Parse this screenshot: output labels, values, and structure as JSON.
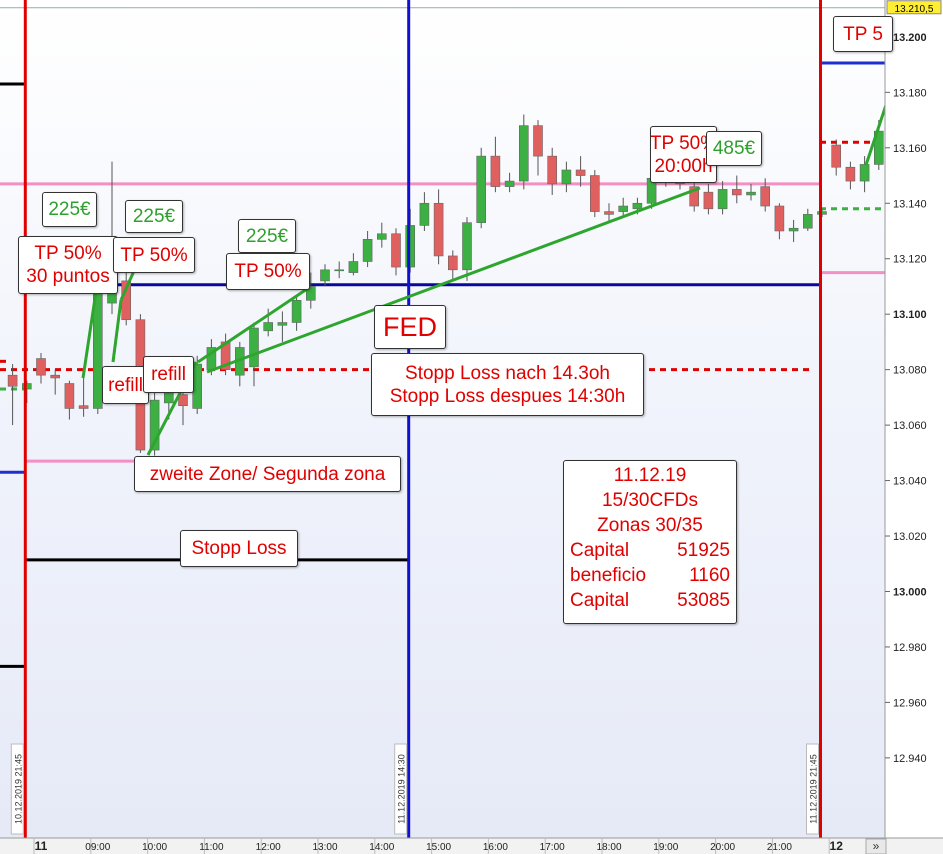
{
  "chart_data": {
    "type": "candlestick",
    "categories": [
      null,
      null,
      "11",
      null,
      null,
      null,
      "09:00",
      null,
      null,
      null,
      "10:00",
      null,
      null,
      null,
      "11:00",
      null,
      null,
      null,
      "12:00",
      null,
      null,
      null,
      "13:00",
      null,
      null,
      null,
      "14:00",
      null,
      null,
      null,
      "15:00",
      null,
      null,
      null,
      "16:00",
      null,
      null,
      null,
      "17:00",
      null,
      null,
      null,
      "18:00",
      null,
      null,
      null,
      "19:00",
      null,
      null,
      null,
      "20:00",
      null,
      null,
      null,
      "21:00",
      null,
      null,
      null,
      "12",
      null,
      null,
      null
    ],
    "open": [
      13.078,
      13.073,
      13.084,
      13.078,
      13.075,
      13.067,
      13.066,
      13.104,
      13.112,
      13.098,
      13.051,
      13.068,
      13.071,
      13.066,
      13.08,
      13.09,
      13.078,
      13.081,
      13.094,
      13.096,
      13.097,
      13.105,
      13.112,
      13.116,
      13.115,
      13.119,
      13.127,
      13.129,
      13.117,
      13.132,
      13.14,
      13.121,
      13.116,
      13.133,
      13.157,
      13.146,
      13.148,
      13.168,
      13.157,
      13.147,
      13.152,
      13.15,
      13.137,
      13.137,
      13.138,
      13.14,
      13.149,
      13.147,
      13.146,
      13.144,
      13.138,
      13.145,
      13.143,
      13.146,
      13.139,
      13.13,
      13.131,
      13.136,
      13.161,
      13.153,
      13.148,
      13.154
    ],
    "high": [
      13.082,
      13.076,
      13.086,
      13.08,
      13.076,
      13.08,
      13.116,
      13.155,
      13.115,
      13.1,
      13.072,
      13.075,
      13.073,
      13.085,
      13.091,
      13.093,
      13.09,
      13.097,
      13.102,
      13.101,
      13.107,
      13.115,
      13.118,
      13.119,
      13.122,
      13.13,
      13.133,
      13.131,
      13.138,
      13.144,
      13.145,
      13.123,
      13.135,
      13.16,
      13.164,
      13.151,
      13.172,
      13.17,
      13.16,
      13.155,
      13.157,
      13.152,
      13.14,
      13.142,
      13.142,
      13.152,
      13.153,
      13.153,
      13.15,
      13.147,
      13.148,
      13.15,
      13.147,
      13.149,
      13.14,
      13.134,
      13.138,
      13.138,
      13.163,
      13.155,
      13.157,
      13.17
    ],
    "low": [
      13.06,
      13.068,
      13.075,
      13.071,
      13.062,
      13.063,
      13.064,
      13.1,
      13.096,
      13.05,
      13.049,
      13.062,
      13.06,
      13.064,
      13.078,
      13.078,
      13.074,
      13.074,
      13.092,
      13.09,
      13.094,
      13.102,
      13.11,
      13.113,
      13.114,
      13.117,
      13.124,
      13.114,
      13.115,
      13.13,
      13.118,
      13.112,
      13.112,
      13.131,
      13.144,
      13.144,
      13.145,
      13.15,
      13.143,
      13.144,
      13.146,
      13.135,
      13.133,
      13.135,
      13.136,
      13.138,
      13.146,
      13.145,
      13.137,
      13.136,
      13.136,
      13.14,
      13.141,
      13.137,
      13.127,
      13.126,
      13.13,
      13.135,
      13.15,
      13.145,
      13.144,
      13.152
    ],
    "close": [
      13.074,
      13.075,
      13.078,
      13.077,
      13.066,
      13.066,
      13.113,
      13.113,
      13.098,
      13.051,
      13.069,
      13.072,
      13.067,
      13.082,
      13.088,
      13.08,
      13.088,
      13.095,
      13.097,
      13.097,
      13.105,
      13.11,
      13.116,
      13.116,
      13.119,
      13.127,
      13.129,
      13.117,
      13.132,
      13.14,
      13.121,
      13.116,
      13.133,
      13.157,
      13.146,
      13.148,
      13.168,
      13.157,
      13.147,
      13.152,
      13.15,
      13.137,
      13.136,
      13.139,
      13.14,
      13.149,
      13.15,
      13.15,
      13.139,
      13.138,
      13.145,
      13.143,
      13.144,
      13.139,
      13.13,
      13.131,
      13.136,
      13.137,
      13.153,
      13.148,
      13.154,
      13.166
    ],
    "up_color": "#3cb043",
    "down_color": "#e06060",
    "ylim": [
      12.9111,
      13.2133
    ],
    "yticks": [
      {
        "value": 13.2,
        "label": "13.200"
      },
      {
        "value": 13.18,
        "label": "13.180"
      },
      {
        "value": 13.16,
        "label": "13.160"
      },
      {
        "value": 13.14,
        "label": "13.140"
      },
      {
        "value": 13.12,
        "label": "13.120"
      },
      {
        "value": 13.1,
        "label": "13.100"
      },
      {
        "value": 13.08,
        "label": "13.080"
      },
      {
        "value": 13.06,
        "label": "13.060"
      },
      {
        "value": 13.04,
        "label": "13.040"
      },
      {
        "value": 13.02,
        "label": "13.020"
      },
      {
        "value": 13.0,
        "label": "13.000"
      },
      {
        "value": 12.98,
        "label": "12.980"
      },
      {
        "value": 12.96,
        "label": "12.960"
      },
      {
        "value": 12.94,
        "label": "12.940"
      }
    ],
    "last_price": {
      "value": 13.2105,
      "label": "13.210,5"
    },
    "levels": [
      {
        "value": 13.147,
        "color": "#f48fc4",
        "dashed": false
      },
      {
        "value": 13.1106,
        "color": "#0a0a9a",
        "dashed": false
      },
      {
        "value": 13.0114,
        "color": "#000000",
        "dashed": false
      },
      {
        "value": 13.08,
        "color": "#e00000",
        "dashed": true
      },
      {
        "value": 13.047,
        "color": "#f48fc4",
        "dashed": false
      },
      {
        "value": 13.043,
        "color": "#2030d0",
        "dashed": false
      },
      {
        "value": 13.183,
        "color": "#000000",
        "dashed": false
      },
      {
        "value": 12.973,
        "color": "#000000",
        "dashed": false
      },
      {
        "value": 13.1906,
        "color": "#2030d0",
        "dashed": false
      },
      {
        "value": 13.115,
        "color": "#f48fc4",
        "dashed": false
      },
      {
        "value": 13.162,
        "color": "#e00000",
        "dashed": true
      },
      {
        "value": 13.138,
        "color": "#3cb043",
        "dashed": true
      },
      {
        "value": 13.073,
        "color": "#3cb043",
        "dashed": true
      },
      {
        "value": 13.083,
        "color": "#e00000",
        "dashed": true
      }
    ],
    "markers": [
      {
        "label": "10.12.2019 21:45",
        "color": "#e00000"
      },
      {
        "label": "11.12.2019 14:30",
        "color": "#1010d0"
      },
      {
        "label": "11.12.2019 21:45",
        "color": "#e00000"
      }
    ],
    "annotations": [
      {
        "lines": [
          "TP 5"
        ],
        "color": "#e00000"
      },
      {
        "lines": [
          "225€"
        ],
        "color": "#2ea02e"
      },
      {
        "lines": [
          "225€"
        ],
        "color": "#2ea02e"
      },
      {
        "lines": [
          "225€"
        ],
        "color": "#2ea02e"
      },
      {
        "lines": [
          "TP 50%",
          "30 puntos"
        ],
        "color": "#e00000"
      },
      {
        "lines": [
          "TP 50%"
        ],
        "color": "#e00000"
      },
      {
        "lines": [
          "TP 50%"
        ],
        "color": "#e00000"
      },
      {
        "lines": [
          "refill"
        ],
        "color": "#e00000"
      },
      {
        "lines": [
          "refill"
        ],
        "color": "#e00000"
      },
      {
        "lines": [
          "FED"
        ],
        "color": "#e00000"
      },
      {
        "lines": [
          "Stopp Loss nach 14.3oh",
          "Stopp Loss despues 14:30h"
        ],
        "color": "#e00000"
      },
      {
        "lines": [
          "zweite Zone/ Segunda zona"
        ],
        "color": "#e00000"
      },
      {
        "lines": [
          "Stopp Loss"
        ],
        "color": "#e00000"
      },
      {
        "lines": [
          "TP 50%",
          "20:00h"
        ],
        "color": "#e00000"
      },
      {
        "lines": [
          "485€"
        ],
        "color": "#2ea02e"
      }
    ],
    "info": {
      "lines": [
        "11.12.19",
        "15/30CFDs",
        "Zonas 30/35"
      ],
      "rows": [
        [
          "Capital",
          51925
        ],
        [
          "beneficio",
          1160
        ],
        [
          "Capital",
          53085
        ]
      ],
      "color": "#e00000"
    }
  }
}
